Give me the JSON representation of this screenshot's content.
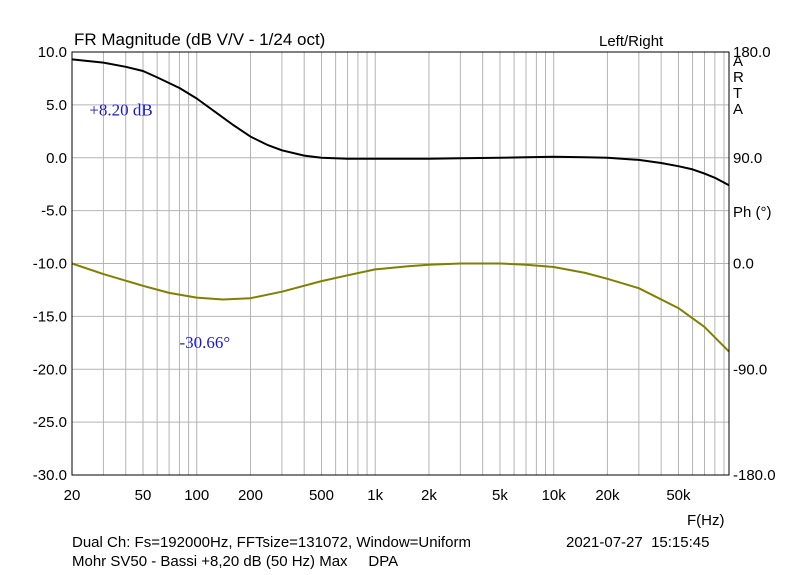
{
  "chart_data": {
    "type": "line",
    "title": "FR Magnitude (dB V/V - 1/24 oct)",
    "channel_label": "Left/Right",
    "brand_letters": [
      "A",
      "R",
      "T",
      "A"
    ],
    "xlabel": "F(Hz)",
    "x_scale": "log",
    "xlim": [
      20,
      96000
    ],
    "x_ticks": [
      20,
      50,
      100,
      200,
      500,
      1000,
      2000,
      5000,
      10000,
      20000,
      50000
    ],
    "x_tick_labels": [
      "20",
      "50",
      "100",
      "200",
      "500",
      "1k",
      "2k",
      "5k",
      "10k",
      "20k",
      "50k"
    ],
    "ylim": [
      -30,
      10
    ],
    "y_ticks": [
      10,
      5,
      0,
      -5,
      -10,
      -15,
      -20,
      -25,
      -30
    ],
    "y_tick_labels": [
      "10.0",
      "5.0",
      "0.0",
      "-5.0",
      "-10.0",
      "-15.0",
      "-20.0",
      "-25.0",
      "-30.0"
    ],
    "y2_label": "Ph (°)",
    "y2lim": [
      -180,
      180
    ],
    "y2_ticks": [
      180,
      90,
      0,
      -90,
      -180
    ],
    "y2_tick_labels": [
      "180.0",
      "90.0",
      "0.0",
      "-90.0",
      "-180.0"
    ],
    "grid": true,
    "series": [
      {
        "axis": "left",
        "color": "#000000",
        "x": [
          20,
          30,
          40,
          50,
          60,
          80,
          100,
          130,
          160,
          200,
          250,
          300,
          400,
          500,
          700,
          1000,
          1500,
          2000,
          3000,
          5000,
          7000,
          10000,
          15000,
          20000,
          30000,
          40000,
          50000,
          60000,
          70000,
          80000,
          96000
        ],
        "y": [
          9.3,
          9.0,
          8.6,
          8.2,
          7.6,
          6.6,
          5.6,
          4.2,
          3.1,
          2.0,
          1.2,
          0.7,
          0.2,
          0.0,
          -0.1,
          -0.1,
          -0.1,
          -0.1,
          -0.05,
          0.0,
          0.05,
          0.1,
          0.05,
          0.0,
          -0.2,
          -0.5,
          -0.8,
          -1.1,
          -1.5,
          -1.9,
          -2.6
        ]
      },
      {
        "axis": "right",
        "color": "#808000",
        "x": [
          20,
          30,
          50,
          70,
          100,
          140,
          200,
          300,
          500,
          700,
          1000,
          1500,
          2000,
          3000,
          5000,
          7000,
          10000,
          15000,
          20000,
          30000,
          50000,
          70000,
          96000
        ],
        "y": [
          0.0,
          -9.0,
          -19.0,
          -25.0,
          -29.0,
          -30.66,
          -29.5,
          -24.0,
          -15.0,
          -10.0,
          -5.0,
          -2.5,
          -1.0,
          0.0,
          0.0,
          -1.0,
          -3.0,
          -8.0,
          -13.0,
          -21.0,
          -38.0,
          -54.0,
          -75.0
        ]
      }
    ],
    "annotations": [
      {
        "text": "+8.20 dB",
        "axis": "left",
        "x": 25,
        "y": 4.0
      },
      {
        "text": "-30.66°",
        "axis": "right",
        "x": 80,
        "y": -72.0
      }
    ]
  },
  "footer": {
    "line1": "Dual Ch: Fs=192000Hz, FFTsize=131072, Window=Uniform",
    "line2": "Mohr SV50 - Bassi +8,20 dB (50 Hz) Max     DPA",
    "timestamp": "2021-07-27  15:15:45"
  }
}
